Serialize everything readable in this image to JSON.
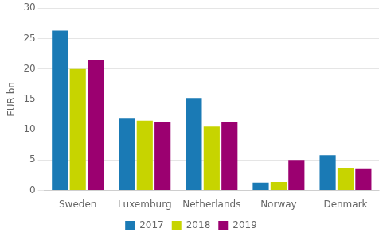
{
  "chart_data": {
    "type": "bar",
    "ylabel": "EUR bn",
    "categories": [
      "Sweden",
      "Luxemburg",
      "Netherlands",
      "Norway",
      "Denmark"
    ],
    "series": [
      {
        "name": "2017",
        "color": "#1a7ab5",
        "values": [
          26.3,
          11.8,
          15.2,
          1.3,
          5.8
        ]
      },
      {
        "name": "2018",
        "color": "#c7d400",
        "values": [
          20.0,
          11.5,
          10.5,
          1.4,
          3.7
        ]
      },
      {
        "name": "2019",
        "color": "#9b0070",
        "values": [
          21.5,
          11.2,
          11.2,
          5.0,
          3.5
        ]
      }
    ],
    "ylim": [
      0,
      30
    ],
    "yticks": [
      0,
      5,
      10,
      15,
      20,
      25,
      30
    ],
    "grid": true,
    "legend": "bottom"
  }
}
